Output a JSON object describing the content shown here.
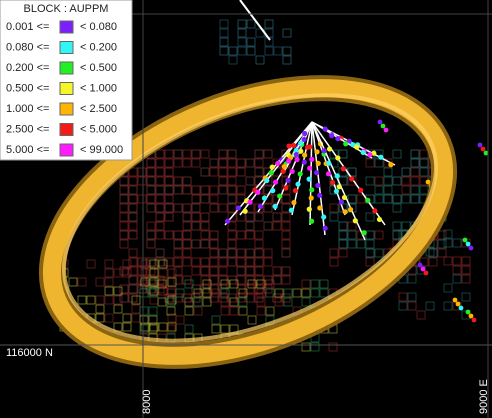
{
  "legend": {
    "title": "BLOCK : AUPPM",
    "rows": [
      {
        "lower": "0.001 <=",
        "upper": "< 0.080",
        "color": "#7b1fff"
      },
      {
        "lower": "0.080 <=",
        "upper": "< 0.200",
        "color": "#33f5f5"
      },
      {
        "lower": "0.200 <=",
        "upper": "< 0.500",
        "color": "#22f022"
      },
      {
        "lower": "0.500 <=",
        "upper": "< 1.000",
        "color": "#f5f52a"
      },
      {
        "lower": "1.000 <=",
        "upper": "< 2.500",
        "color": "#ffb400"
      },
      {
        "lower": "2.500 <=",
        "upper": "< 5.000",
        "color": "#f51a1a"
      },
      {
        "lower": "5.000 <=",
        "upper": "< 99.000",
        "color": "#ff1aff"
      }
    ]
  },
  "axes": {
    "north": "116000 N",
    "east_low": "8000",
    "east_high": "9000 E"
  }
}
